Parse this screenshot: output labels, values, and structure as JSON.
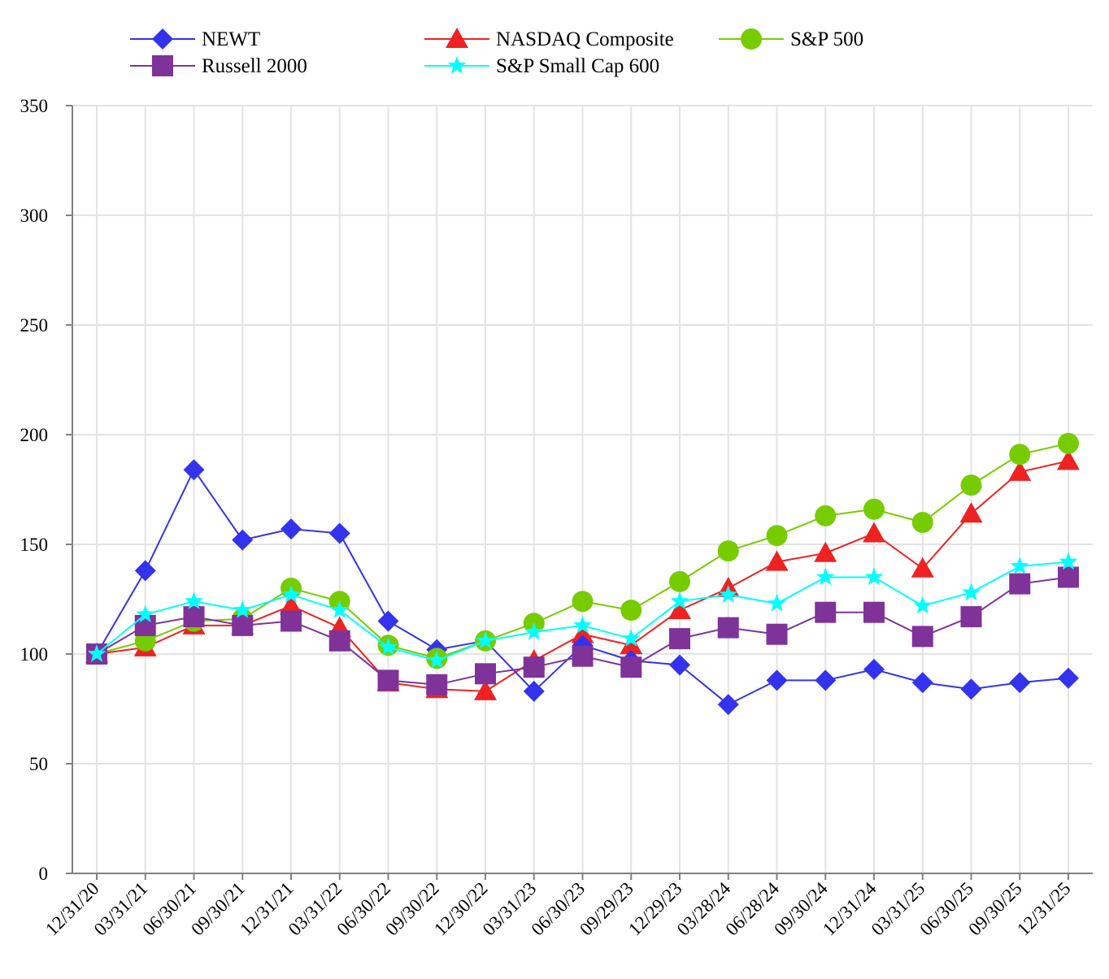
{
  "chart_data": {
    "type": "line",
    "title": "",
    "xlabel": "",
    "ylabel": "",
    "ylim": [
      0,
      350
    ],
    "yticks": [
      0,
      50,
      100,
      150,
      200,
      250,
      300,
      350
    ],
    "grid": true,
    "legend_position": "top",
    "categories": [
      "12/31/20",
      "03/31/21",
      "06/30/21",
      "09/30/21",
      "12/31/21",
      "03/31/22",
      "06/30/22",
      "09/30/22",
      "12/30/22",
      "03/31/23",
      "06/30/23",
      "09/29/23",
      "12/29/23",
      "03/28/24",
      "06/28/24",
      "09/30/24",
      "12/31/24",
      "03/31/25",
      "06/30/25",
      "09/30/25",
      "12/31/25"
    ],
    "series": [
      {
        "name": "NEWT",
        "color": "#3333ee",
        "marker": "diamond",
        "values": [
          100,
          138,
          184,
          152,
          157,
          155,
          115,
          102,
          106,
          83,
          104,
          97,
          95,
          77,
          88,
          88,
          93,
          87,
          84,
          87,
          89
        ]
      },
      {
        "name": "NASDAQ Composite",
        "color": "#ee2222",
        "marker": "triangle",
        "values": [
          100,
          103,
          113,
          113,
          122,
          112,
          87,
          84,
          83,
          97,
          109,
          104,
          120,
          130,
          142,
          146,
          155,
          139,
          164,
          183,
          188
        ]
      },
      {
        "name": "S&P 500",
        "color": "#77cc00",
        "marker": "circle",
        "values": [
          100,
          106,
          115,
          116,
          130,
          124,
          104,
          98,
          106,
          114,
          124,
          120,
          133,
          147,
          154,
          163,
          166,
          160,
          177,
          191,
          196
        ]
      },
      {
        "name": "Russell 2000",
        "color": "#7f3399",
        "marker": "square",
        "values": [
          100,
          113,
          117,
          113,
          115,
          106,
          88,
          86,
          91,
          94,
          99,
          94,
          107,
          112,
          109,
          119,
          119,
          108,
          117,
          132,
          135
        ]
      },
      {
        "name": "S&P Small Cap 600",
        "color": "#00ffff",
        "marker": "star",
        "values": [
          100,
          118,
          124,
          120,
          127,
          120,
          103,
          97,
          106,
          110,
          113,
          107,
          124,
          127,
          123,
          135,
          135,
          122,
          128,
          140,
          142
        ]
      }
    ]
  }
}
